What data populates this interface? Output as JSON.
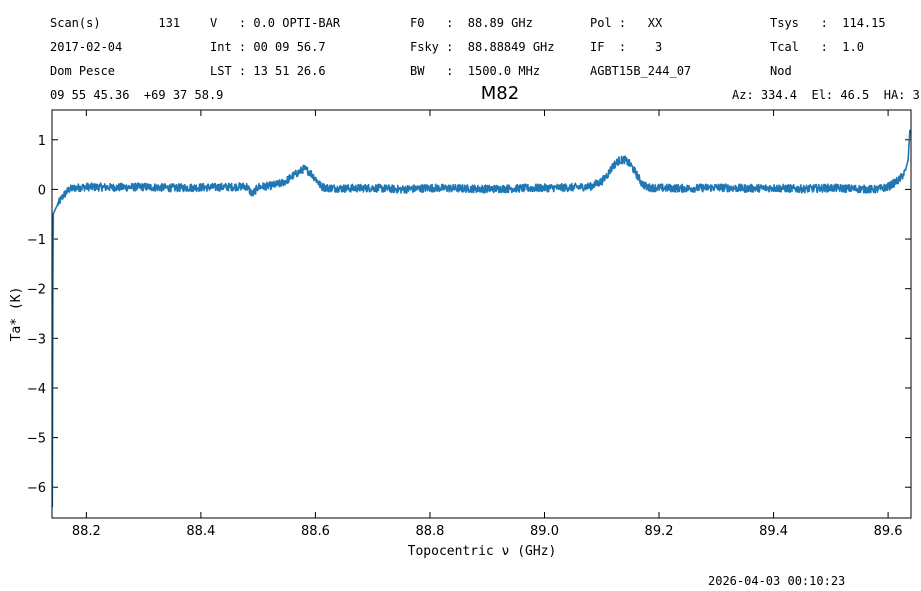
{
  "header": {
    "rows": [
      [
        "Scan(s)        131",
        "V   : 0.0 OPTI-BAR",
        "F0   :  88.89 GHz",
        "Pol :   XX",
        "Tsys   :  114.15"
      ],
      [
        "2017-02-04",
        "Int : 00 09 56.7",
        "Fsky :  88.88849 GHz",
        "IF  :    3",
        "Tcal   :  1.0"
      ],
      [
        "Dom Pesce",
        "LST : 13 51 26.6",
        "BW   :  1500.0 MHz",
        "AGBT15B_244_07",
        "Nod"
      ]
    ],
    "coords": "09 55 45.36  +69 37 58.9",
    "azel": "Az: 334.4  El: 46.5  HA: 3"
  },
  "footer": {
    "timestamp": "2026-04-03 00:10:23"
  },
  "chart_data": {
    "type": "line",
    "title": "M82",
    "xlabel": "Topocentric ν (GHz)",
    "ylabel": "Ta* (K)",
    "xlim": [
      88.14,
      89.64
    ],
    "ylim": [
      -6.62,
      1.6
    ],
    "xticks": [
      88.2,
      88.4,
      88.6,
      88.8,
      89.0,
      89.2,
      89.4,
      89.6
    ],
    "yticks": [
      1,
      0,
      -1,
      -2,
      -3,
      -4,
      -5,
      -6
    ],
    "series_color": "#1f77b4",
    "grid": false,
    "series": [
      {
        "x": [
          88.1405,
          88.142,
          88.145,
          88.15,
          88.16,
          88.17,
          88.18,
          88.2,
          88.25,
          88.3,
          88.35,
          88.4,
          88.45,
          88.48,
          88.49,
          88.5,
          88.52,
          88.54,
          88.55,
          88.56,
          88.57,
          88.58,
          88.59,
          88.6,
          88.61,
          88.62,
          88.65,
          88.7,
          88.75,
          88.8,
          88.85,
          88.9,
          88.95,
          89.0,
          89.05,
          89.08,
          89.1,
          89.11,
          89.12,
          89.13,
          89.14,
          89.15,
          89.16,
          89.17,
          89.18,
          89.2,
          89.25,
          89.3,
          89.35,
          89.4,
          89.45,
          89.5,
          89.55,
          89.58,
          89.6,
          89.62,
          89.63,
          89.635,
          89.638
        ],
        "y": [
          -6.4,
          -0.5,
          -0.42,
          -0.3,
          -0.12,
          0.0,
          0.03,
          0.05,
          0.04,
          0.05,
          0.03,
          0.04,
          0.05,
          0.06,
          -0.1,
          0.05,
          0.07,
          0.12,
          0.18,
          0.27,
          0.34,
          0.42,
          0.35,
          0.22,
          0.06,
          0.03,
          0.02,
          0.03,
          0.0,
          0.03,
          0.02,
          0.01,
          0.02,
          0.03,
          0.04,
          0.06,
          0.16,
          0.3,
          0.48,
          0.58,
          0.6,
          0.5,
          0.32,
          0.12,
          0.04,
          0.03,
          0.02,
          0.04,
          0.02,
          0.03,
          0.01,
          0.03,
          0.01,
          0.0,
          0.05,
          0.2,
          0.36,
          0.6,
          1.2
        ]
      }
    ]
  }
}
